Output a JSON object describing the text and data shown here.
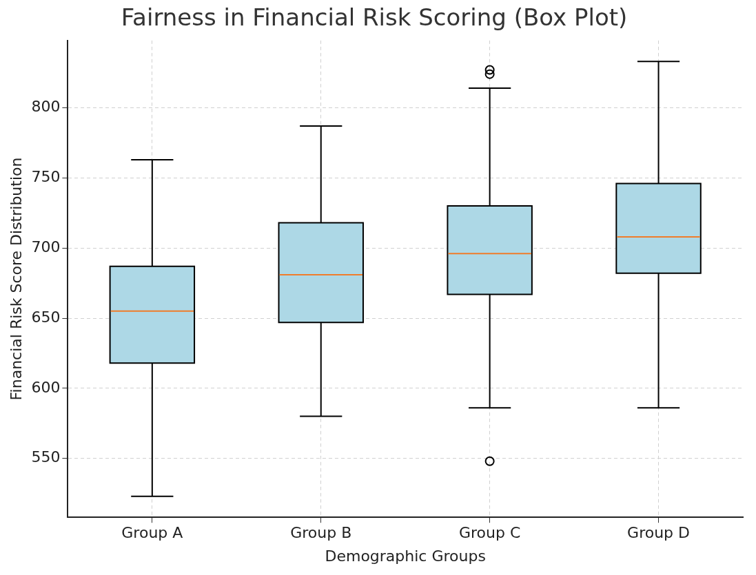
{
  "chart_data": {
    "type": "box",
    "title": "Fairness in Financial Risk Scoring (Box Plot)",
    "xlabel": "Demographic Groups",
    "ylabel": "Financial Risk Score Distribution",
    "categories": [
      "Group A",
      "Group B",
      "Group C",
      "Group D"
    ],
    "color": "#add8e6",
    "boxes": [
      {
        "low": 523,
        "q1": 618,
        "median": 655,
        "q3": 687,
        "high": 763
      },
      {
        "low": 580,
        "q1": 647,
        "median": 681,
        "q3": 718,
        "high": 787
      },
      {
        "low": 586,
        "q1": 667,
        "median": 696,
        "q3": 730,
        "high": 814,
        "outliers": [
          548,
          824,
          827
        ]
      },
      {
        "low": 586,
        "q1": 682,
        "median": 708,
        "q3": 746,
        "high": 833
      }
    ],
    "ylim": [
      508,
      848
    ],
    "yticks": [
      550,
      600,
      650,
      700,
      750,
      800
    ],
    "grid": true
  }
}
